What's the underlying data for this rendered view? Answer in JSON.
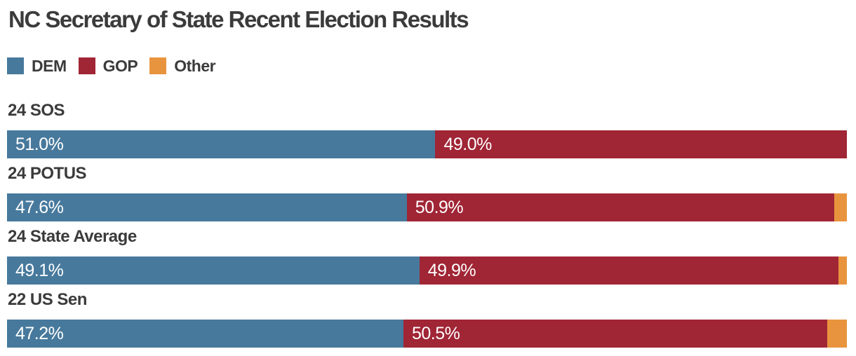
{
  "title": "NC Secretary of State Recent Election Results",
  "legend": [
    {
      "label": "DEM",
      "key": "dem"
    },
    {
      "label": "GOP",
      "key": "gop"
    },
    {
      "label": "Other",
      "key": "other"
    }
  ],
  "colors": {
    "dem": "#47799c",
    "gop": "#a02535",
    "other": "#e8943e",
    "text": "#3b3b3b",
    "value_label": "#ffffff",
    "background": "#ffffff"
  },
  "chart_data": {
    "type": "bar",
    "orientation": "horizontal",
    "stacked": true,
    "stack_total": 100,
    "title": "NC Secretary of State Recent Election Results",
    "legend_position": "top",
    "legend_entries": [
      "DEM",
      "GOP",
      "Other"
    ],
    "xlim": [
      0,
      100
    ],
    "grid": false,
    "categories": [
      "24 SOS",
      "24 POTUS",
      "24 State Average",
      "22 US Sen"
    ],
    "series": [
      {
        "name": "DEM",
        "key": "dem",
        "values": [
          51.0,
          47.6,
          49.1,
          47.2
        ],
        "labels": [
          "51.0%",
          "47.6%",
          "49.1%",
          "47.2%"
        ]
      },
      {
        "name": "GOP",
        "key": "gop",
        "values": [
          49.0,
          50.9,
          49.9,
          50.5
        ],
        "labels": [
          "49.0%",
          "50.9%",
          "49.9%",
          "50.5%"
        ]
      },
      {
        "name": "Other",
        "key": "other",
        "values": [
          0.0,
          1.5,
          1.0,
          2.3
        ],
        "labels": [
          "",
          "",
          "",
          ""
        ]
      }
    ]
  }
}
